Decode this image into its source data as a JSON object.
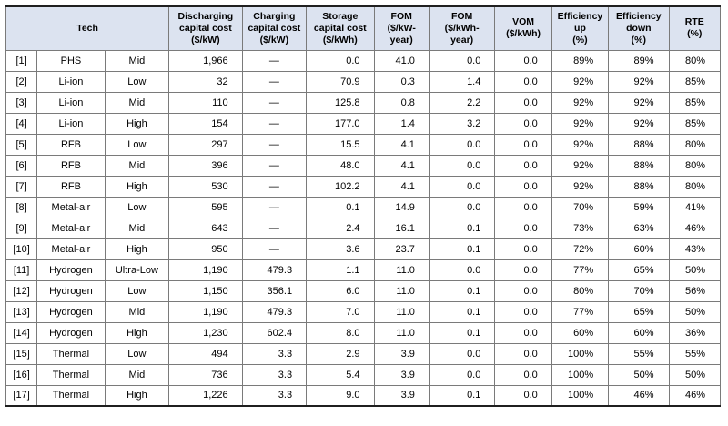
{
  "colors": {
    "header_bg": "#dce3f0",
    "grid_line": "#7a7a7a",
    "outer_border": "#1f1f1f",
    "text": "#000000"
  },
  "chart_data": {
    "type": "table",
    "corner_label": "Tech",
    "column_headers": [
      "Discharging\ncapital cost\n($/kW)",
      "Charging\ncapital cost\n($/kW)",
      "Storage\ncapital cost\n($/kWh)",
      "FOM\n($/kW-\nyear)",
      "FOM\n($/kWh-\nyear)",
      "VOM\n($/kWh)",
      "Efficiency\nup\n(%)",
      "Efficiency\ndown\n(%)",
      "RTE\n(%)"
    ],
    "rows": [
      [
        "[1]",
        "PHS",
        "Mid",
        "1,966",
        "—",
        "0.0",
        "41.0",
        "0.0",
        "0.0",
        "89%",
        "89%",
        "80%"
      ],
      [
        "[2]",
        "Li-ion",
        "Low",
        "32",
        "—",
        "70.9",
        "0.3",
        "1.4",
        "0.0",
        "92%",
        "92%",
        "85%"
      ],
      [
        "[3]",
        "Li-ion",
        "Mid",
        "110",
        "—",
        "125.8",
        "0.8",
        "2.2",
        "0.0",
        "92%",
        "92%",
        "85%"
      ],
      [
        "[4]",
        "Li-ion",
        "High",
        "154",
        "—",
        "177.0",
        "1.4",
        "3.2",
        "0.0",
        "92%",
        "92%",
        "85%"
      ],
      [
        "[5]",
        "RFB",
        "Low",
        "297",
        "—",
        "15.5",
        "4.1",
        "0.0",
        "0.0",
        "92%",
        "88%",
        "80%"
      ],
      [
        "[6]",
        "RFB",
        "Mid",
        "396",
        "—",
        "48.0",
        "4.1",
        "0.0",
        "0.0",
        "92%",
        "88%",
        "80%"
      ],
      [
        "[7]",
        "RFB",
        "High",
        "530",
        "—",
        "102.2",
        "4.1",
        "0.0",
        "0.0",
        "92%",
        "88%",
        "80%"
      ],
      [
        "[8]",
        "Metal-air",
        "Low",
        "595",
        "—",
        "0.1",
        "14.9",
        "0.0",
        "0.0",
        "70%",
        "59%",
        "41%"
      ],
      [
        "[9]",
        "Metal-air",
        "Mid",
        "643",
        "—",
        "2.4",
        "16.1",
        "0.1",
        "0.0",
        "73%",
        "63%",
        "46%"
      ],
      [
        "[10]",
        "Metal-air",
        "High",
        "950",
        "—",
        "3.6",
        "23.7",
        "0.1",
        "0.0",
        "72%",
        "60%",
        "43%"
      ],
      [
        "[11]",
        "Hydrogen",
        "Ultra-Low",
        "1,190",
        "479.3",
        "1.1",
        "11.0",
        "0.0",
        "0.0",
        "77%",
        "65%",
        "50%"
      ],
      [
        "[12]",
        "Hydrogen",
        "Low",
        "1,150",
        "356.1",
        "6.0",
        "11.0",
        "0.1",
        "0.0",
        "80%",
        "70%",
        "56%"
      ],
      [
        "[13]",
        "Hydrogen",
        "Mid",
        "1,190",
        "479.3",
        "7.0",
        "11.0",
        "0.1",
        "0.0",
        "77%",
        "65%",
        "50%"
      ],
      [
        "[14]",
        "Hydrogen",
        "High",
        "1,230",
        "602.4",
        "8.0",
        "11.0",
        "0.1",
        "0.0",
        "60%",
        "60%",
        "36%"
      ],
      [
        "[15]",
        "Thermal",
        "Low",
        "494",
        "3.3",
        "2.9",
        "3.9",
        "0.0",
        "0.0",
        "100%",
        "55%",
        "55%"
      ],
      [
        "[16]",
        "Thermal",
        "Mid",
        "736",
        "3.3",
        "5.4",
        "3.9",
        "0.0",
        "0.0",
        "100%",
        "50%",
        "50%"
      ],
      [
        "[17]",
        "Thermal",
        "High",
        "1,226",
        "3.3",
        "9.0",
        "3.9",
        "0.1",
        "0.0",
        "100%",
        "46%",
        "46%"
      ]
    ]
  }
}
